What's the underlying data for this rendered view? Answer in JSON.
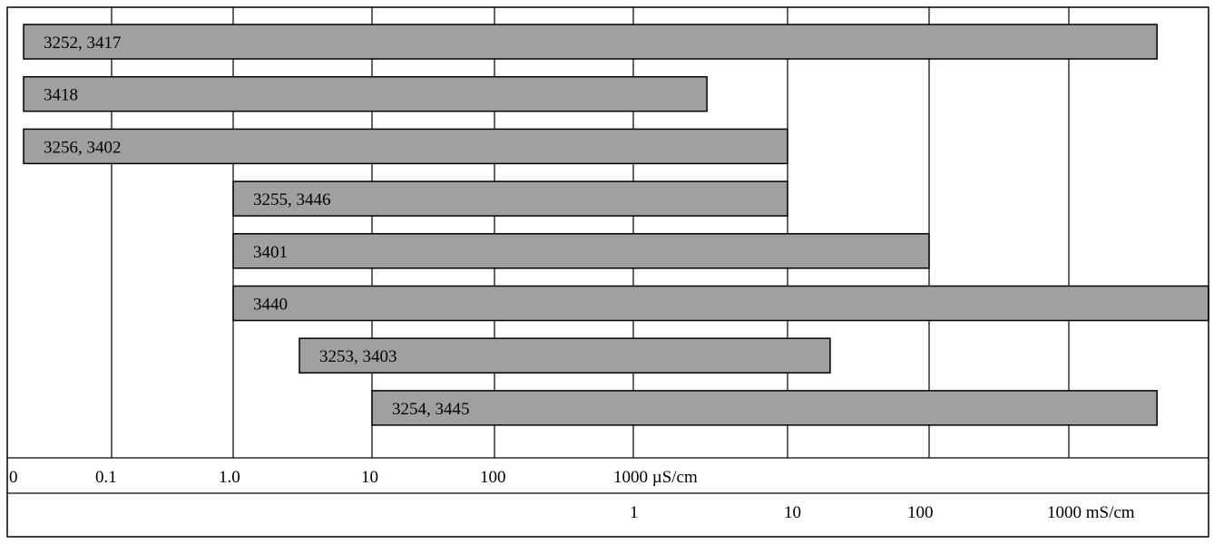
{
  "chart_data": {
    "type": "bar",
    "orientation": "horizontal",
    "unit_scale_upper": "µS/cm",
    "unit_scale_lower": "mS/cm",
    "upper_ticks": [
      {
        "label": "0",
        "value": 0
      },
      {
        "label": "0.1",
        "value": 0.1
      },
      {
        "label": "1.0",
        "value": 1
      },
      {
        "label": "10",
        "value": 10
      },
      {
        "label": "100",
        "value": 100
      },
      {
        "label": "1000 µS/cm",
        "value": 1000
      }
    ],
    "lower_ticks": [
      {
        "label": "1",
        "value": 1
      },
      {
        "label": "10",
        "value": 10
      },
      {
        "label": "100",
        "value": 100
      },
      {
        "label": "1000 mS/cm",
        "value": 1000
      }
    ],
    "bars": [
      {
        "label": "3252, 3417",
        "min_uS_cm": 0,
        "max_uS_cm": 2000000
      },
      {
        "label": "3418",
        "min_uS_cm": 0,
        "max_uS_cm": 3000
      },
      {
        "label": "3256, 3402",
        "min_uS_cm": 0,
        "max_uS_cm": 10000
      },
      {
        "label": "3255, 3446",
        "min_uS_cm": 1,
        "max_uS_cm": 10000
      },
      {
        "label": "3401",
        "min_uS_cm": 1,
        "max_uS_cm": 100000
      },
      {
        "label": "3440",
        "min_uS_cm": 1,
        "max_uS_cm": 3000000
      },
      {
        "label": "3253, 3403",
        "min_uS_cm": 3,
        "max_uS_cm": 20000
      },
      {
        "label": "3254, 3445",
        "min_uS_cm": 10,
        "max_uS_cm": 2000000
      }
    ],
    "grid": true
  },
  "colors": {
    "bar_fill": "#a0a0a0",
    "line": "#000000",
    "background": "#ffffff"
  }
}
